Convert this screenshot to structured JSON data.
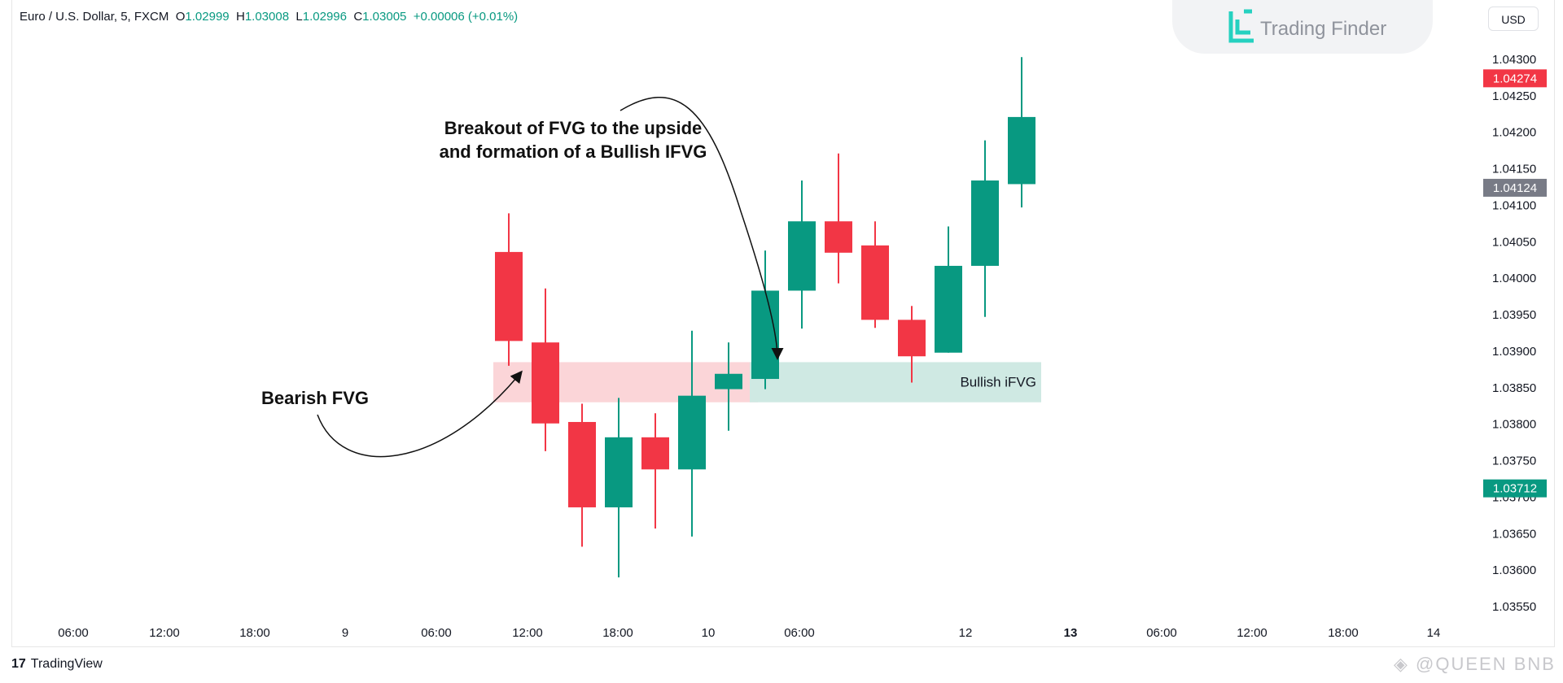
{
  "legend": {
    "symbol": "Euro / U.S. Dollar, 5, FXCM",
    "o_label": "O",
    "o_value": "1.02999",
    "h_label": "H",
    "h_value": "1.03008",
    "l_label": "L",
    "l_value": "1.02996",
    "c_label": "C",
    "c_value": "1.03005",
    "change": "+0.00006 (+0.01%)"
  },
  "brand": {
    "name": "Trading Finder"
  },
  "currency_button": "USD",
  "footer": {
    "tradingview": "TradingView",
    "watermark": "@QUEEN BNB"
  },
  "colors": {
    "bull": "#089981",
    "bear": "#f23645",
    "fvg_bear": "#fbd5d8",
    "fvg_bull": "#cfe9e3",
    "grey_label": "#787b86"
  },
  "chart_data": {
    "type": "candlestick",
    "symbol": "EUR/USD",
    "timeframe": "5",
    "x_ticks": [
      "06:00",
      "12:00",
      "18:00",
      "9",
      "06:00",
      "12:00",
      "18:00",
      "10",
      "06:00",
      "12",
      "13",
      "06:00",
      "12:00",
      "18:00",
      "14"
    ],
    "y_ticks": [
      "1.04300",
      "1.04250",
      "1.04200",
      "1.04150",
      "1.04100",
      "1.04050",
      "1.04000",
      "1.03950",
      "1.03900",
      "1.03850",
      "1.03800",
      "1.03750",
      "1.03700",
      "1.03650",
      "1.03600",
      "1.03550"
    ],
    "ylim": [
      1.0351,
      1.0436
    ],
    "price_labels": [
      {
        "value": "1.04274",
        "color": "#f23645"
      },
      {
        "value": "1.04124",
        "color": "#787b86"
      },
      {
        "value": "1.03712",
        "color": "#089981"
      }
    ],
    "candles": [
      {
        "open": 1.04036,
        "high": 1.04089,
        "low": 1.0388,
        "close": 1.03914
      },
      {
        "open": 1.03912,
        "high": 1.03986,
        "low": 1.03763,
        "close": 1.03801
      },
      {
        "open": 1.03803,
        "high": 1.03828,
        "low": 1.03632,
        "close": 1.03686
      },
      {
        "open": 1.03686,
        "high": 1.03836,
        "low": 1.0359,
        "close": 1.03782
      },
      {
        "open": 1.03782,
        "high": 1.03815,
        "low": 1.03657,
        "close": 1.03738
      },
      {
        "open": 1.03738,
        "high": 1.03928,
        "low": 1.03646,
        "close": 1.03839
      },
      {
        "open": 1.03848,
        "high": 1.03912,
        "low": 1.03791,
        "close": 1.03869
      },
      {
        "open": 1.03862,
        "high": 1.04038,
        "low": 1.03848,
        "close": 1.03983
      },
      {
        "open": 1.03983,
        "high": 1.04134,
        "low": 1.03931,
        "close": 1.04078
      },
      {
        "open": 1.04078,
        "high": 1.04171,
        "low": 1.03993,
        "close": 1.04035
      },
      {
        "open": 1.04045,
        "high": 1.04078,
        "low": 1.03932,
        "close": 1.03943
      },
      {
        "open": 1.03943,
        "high": 1.03962,
        "low": 1.03857,
        "close": 1.03893
      },
      {
        "open": 1.03898,
        "high": 1.04071,
        "low": 1.03898,
        "close": 1.04017
      },
      {
        "open": 1.04017,
        "high": 1.04189,
        "low": 1.03947,
        "close": 1.04134
      },
      {
        "open": 1.04129,
        "high": 1.04303,
        "low": 1.04097,
        "close": 1.04221
      }
    ],
    "zones": [
      {
        "label": "",
        "top": 1.03885,
        "bottom": 1.0383,
        "start_candle": 0,
        "end_candle": 7
      },
      {
        "label": "Bullish iFVG",
        "top": 1.03885,
        "bottom": 1.0383,
        "start_candle": 7,
        "end_candle": 14
      }
    ],
    "annotations": [
      {
        "lines": [
          "Breakout of FVG to the upside",
          "and formation of a Bullish IFVG"
        ]
      },
      {
        "lines": [
          "Bearish FVG"
        ]
      }
    ]
  }
}
